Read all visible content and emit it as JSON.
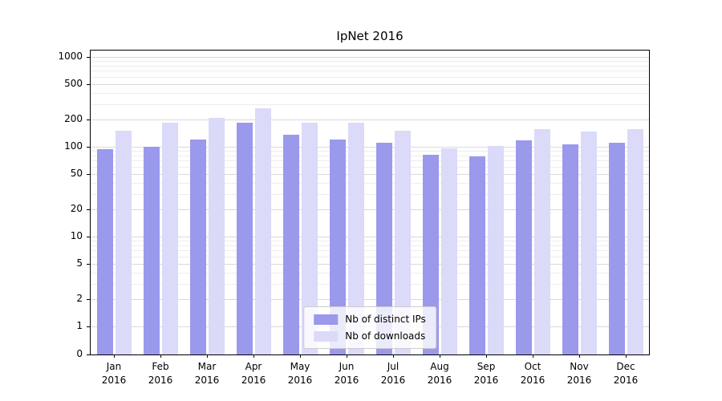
{
  "title": "IpNet 2016",
  "colors": {
    "ips": "#9a99ec",
    "downloads": "#dbdaf8",
    "grid_major": "#d9d9d9",
    "grid_minor": "#ededed",
    "axis": "#000000"
  },
  "legend": {
    "items": [
      {
        "label": "Nb of distinct IPs",
        "color_key": "ips"
      },
      {
        "label": "Nb of downloads",
        "color_key": "downloads"
      }
    ]
  },
  "chart_data": {
    "type": "bar",
    "scale": "symlog",
    "title": "IpNet 2016",
    "categories": [
      "Jan 2016",
      "Feb 2016",
      "Mar 2016",
      "Apr 2016",
      "May 2016",
      "Jun 2016",
      "Jul 2016",
      "Aug 2016",
      "Sep 2016",
      "Oct 2016",
      "Nov 2016",
      "Dec 2016"
    ],
    "series": [
      {
        "name": "Nb of distinct IPs",
        "values": [
          95,
          100,
          120,
          185,
          135,
          120,
          110,
          82,
          79,
          118,
          106,
          112
        ]
      },
      {
        "name": "Nb of downloads",
        "values": [
          150,
          185,
          210,
          270,
          185,
          185,
          150,
          97,
          103,
          158,
          147,
          158
        ]
      }
    ],
    "y_ticks": [
      0,
      1,
      2,
      5,
      10,
      20,
      50,
      100,
      200,
      500,
      1000
    ],
    "y_minor_ticks": [
      3,
      4,
      6,
      7,
      8,
      9,
      30,
      40,
      60,
      70,
      80,
      90,
      300,
      400,
      600,
      700,
      800,
      900
    ],
    "ylim": [
      0,
      1000
    ],
    "xlabel": "",
    "ylabel": "",
    "grid": true,
    "legend_position": "lower center inside"
  }
}
